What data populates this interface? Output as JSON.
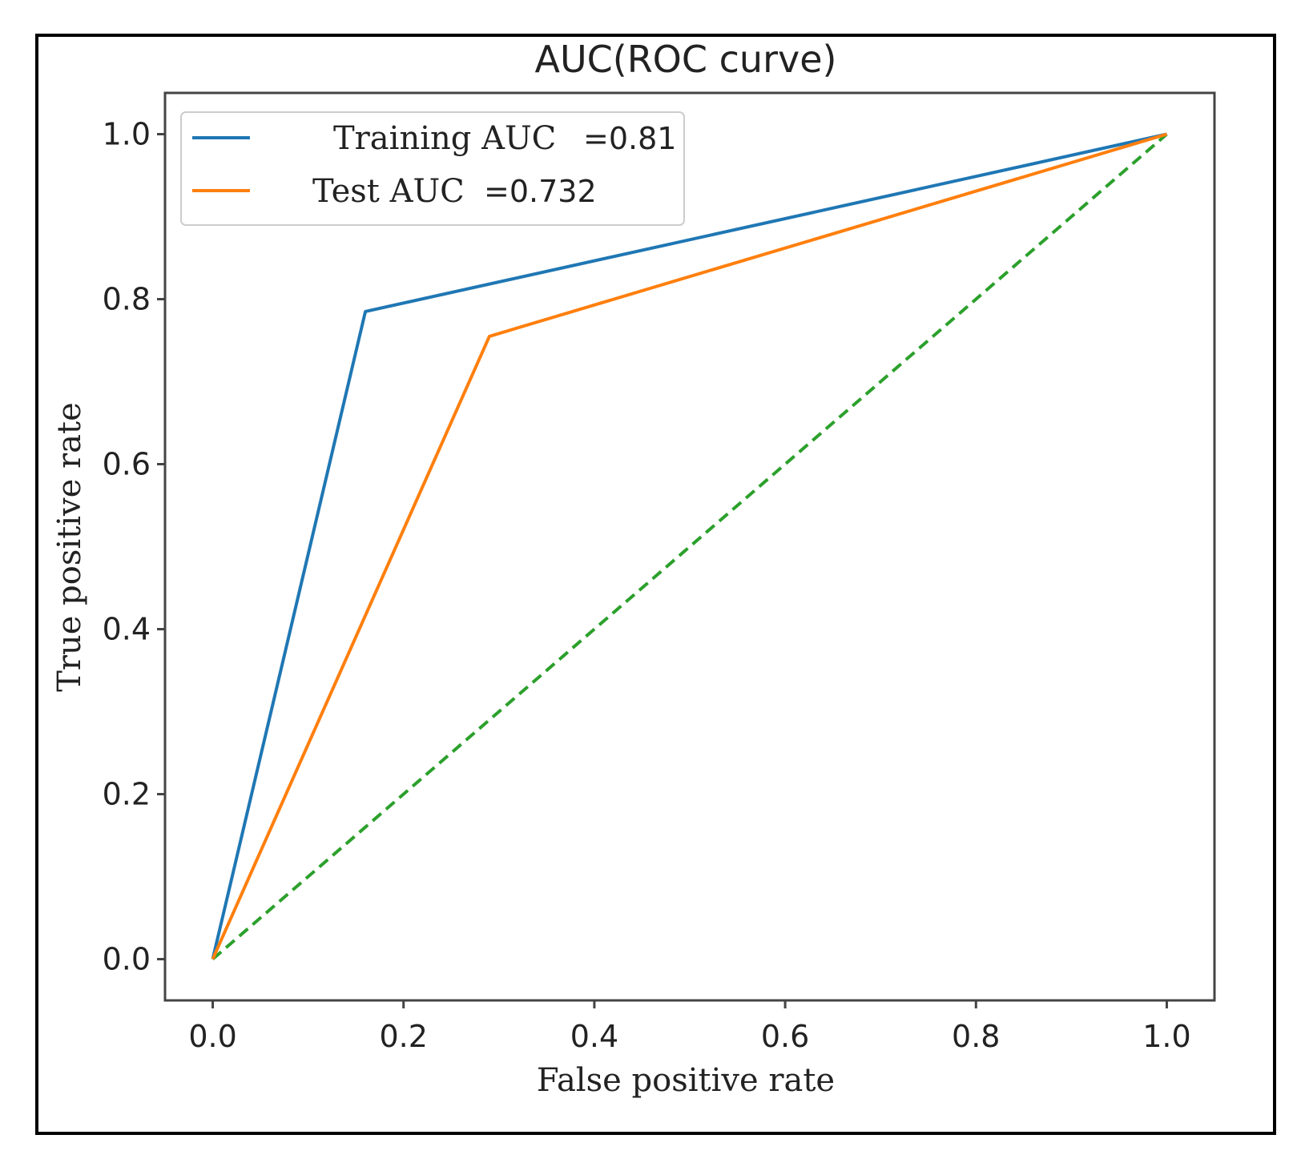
{
  "chart_data": {
    "type": "line",
    "title": "AUC(ROC curve)",
    "xlabel": "False positive rate",
    "ylabel": "True positive rate",
    "xlim": [
      -0.05,
      1.05
    ],
    "ylim": [
      -0.05,
      1.05
    ],
    "x_ticks": [
      "0.0",
      "0.2",
      "0.4",
      "0.6",
      "0.8",
      "1.0"
    ],
    "y_ticks": [
      "0.0",
      "0.2",
      "0.4",
      "0.6",
      "0.8",
      "1.0"
    ],
    "grid": false,
    "legend_position": "top-left",
    "series": [
      {
        "name": "Training AUC",
        "legend_value": "=0.81",
        "color": "#1f77b4",
        "style": "solid",
        "x": [
          0.0,
          0.16,
          1.0
        ],
        "y": [
          0.0,
          0.785,
          1.0
        ]
      },
      {
        "name": "Test AUC",
        "legend_value": "=0.732",
        "color": "#ff7f0e",
        "style": "solid",
        "x": [
          0.0,
          0.29,
          1.0
        ],
        "y": [
          0.0,
          0.755,
          1.0
        ]
      },
      {
        "color": "#2ca02c",
        "style": "dashed",
        "x": [
          0.0,
          1.0
        ],
        "y": [
          0.0,
          1.0
        ]
      }
    ]
  }
}
